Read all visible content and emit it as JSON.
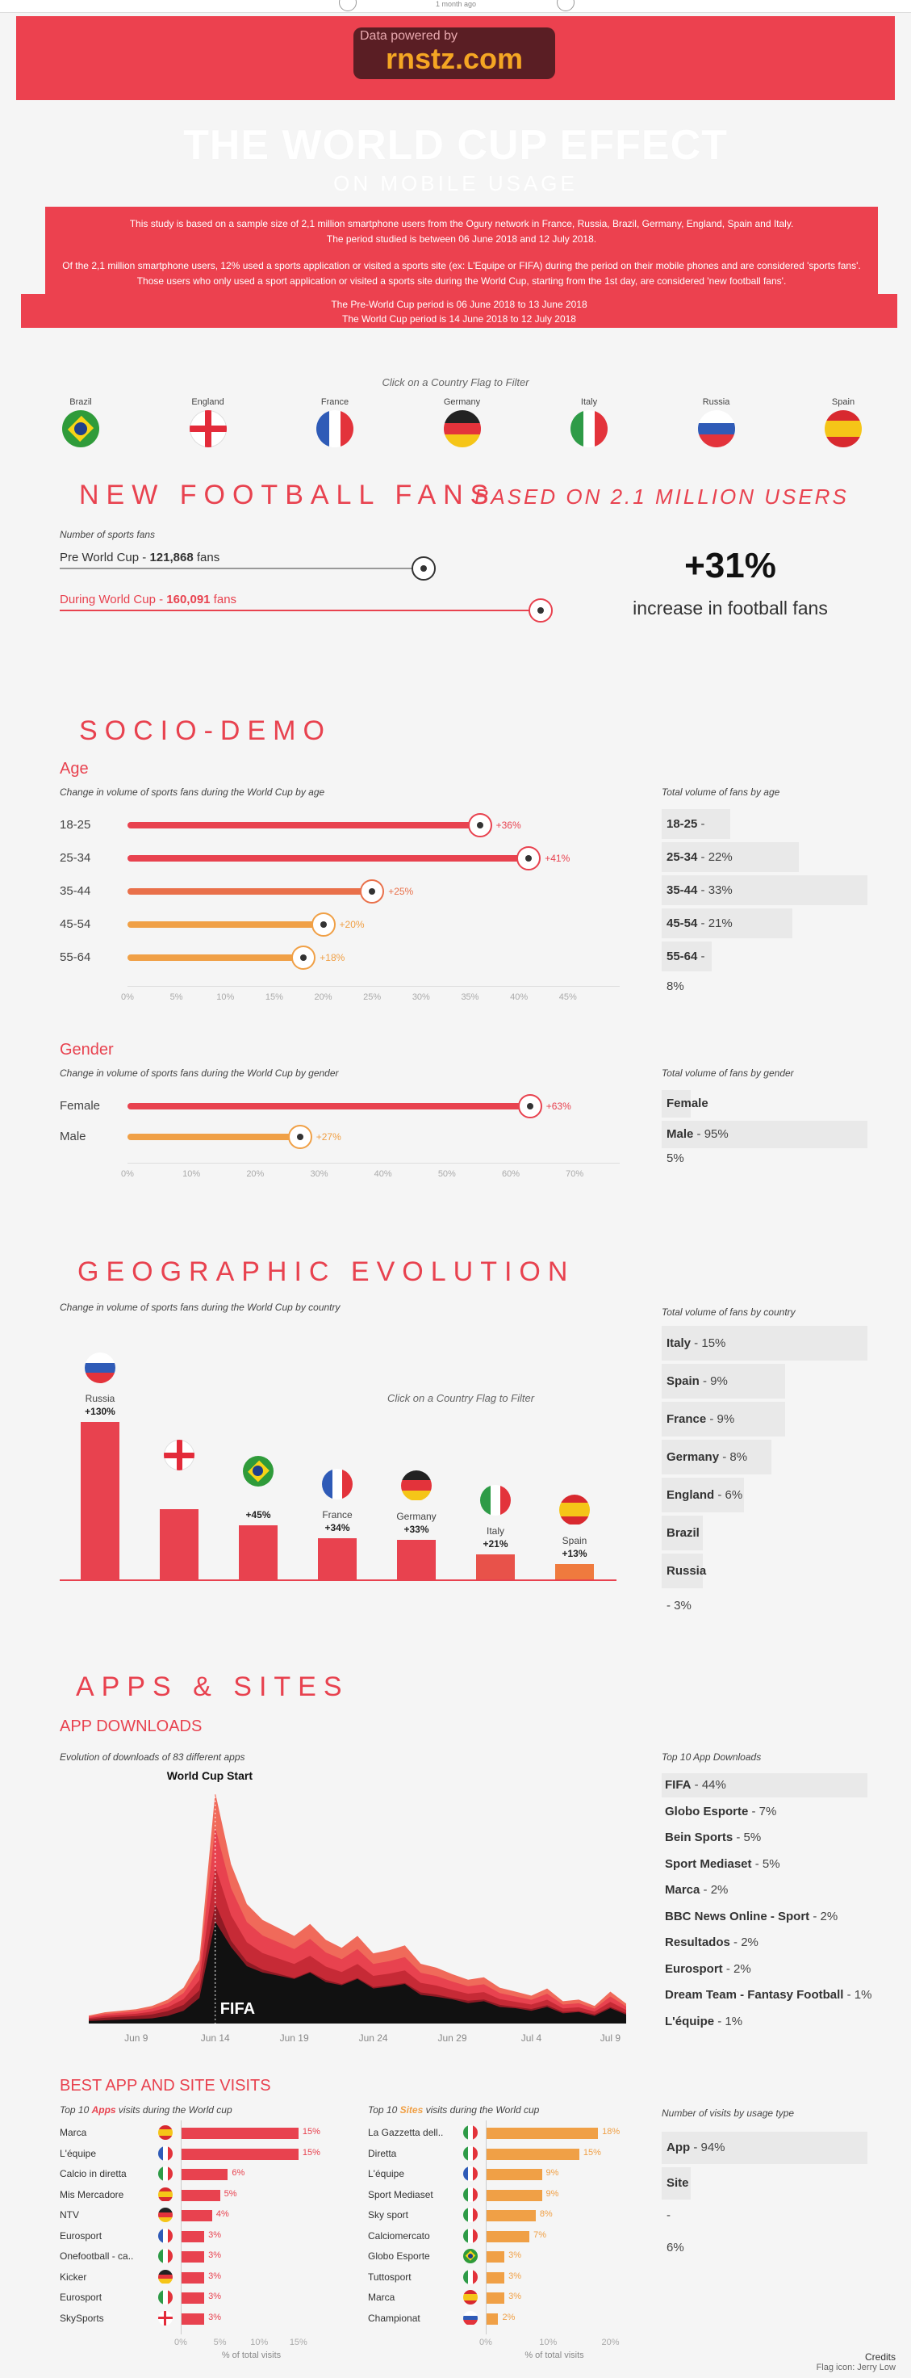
{
  "top": {
    "label": "1 month ago"
  },
  "banner": {
    "powered": "Data powered by",
    "brand": "rnstz.com"
  },
  "title": "THE WORLD CUP EFFECT",
  "subtitle": "ON MOBILE USAGE",
  "info": {
    "line1": "This study is based on a sample size of 2,1 million smartphone users from the Ogury network in France, Russia, Brazil, Germany, England, Spain and Italy.",
    "line2": "The period studied is between 06 June 2018 and 12 July 2018.",
    "line3": "Of the 2,1 million smartphone users, 12% used a sports application or visited a sports site (ex: L'Equipe or FIFA) during the period on their mobile phones and are considered 'sports fans'. Those users who only used a sport application or visited a sports site during the World Cup, starting from the 1st day, are considered 'new football fans'.",
    "line4": "The Pre-World Cup period is 06 June 2018 to 13 June 2018",
    "line5": "The World Cup period is 14 June 2018 to 12 July 2018"
  },
  "filter_hint": "Click on a Country Flag to Filter",
  "flags": [
    "Brazil",
    "England",
    "France",
    "Germany",
    "Italy",
    "Russia",
    "Spain"
  ],
  "new_fans": {
    "title": "NEW FOOTBALL FANS",
    "subtitle": "BASED ON 2.1 MILLION USERS",
    "caption": "Number of sports fans",
    "pre_label": "Pre World Cup - ",
    "pre_value": "121,868",
    "pre_unit": " fans",
    "during_label": "During World Cup - ",
    "during_value": "160,091",
    "during_unit": " fans",
    "pre_fraction": 0.76,
    "big_value": "+31%",
    "big_label": "increase in football fans"
  },
  "socio": {
    "title": "SOCIO-DEMO",
    "age_title": "Age",
    "age_caption": "Change in volume of sports fans during the World Cup by age",
    "age_total_caption": "Total volume of fans by age",
    "gender_title": "Gender",
    "gender_caption": "Change in volume of sports fans during the World Cup by gender",
    "gender_total_caption": "Total volume of fans by gender"
  },
  "geo": {
    "title": "GEOGRAPHIC EVOLUTION",
    "caption": "Change in volume of sports fans during the World Cup by country",
    "total_caption": "Total volume of fans by country"
  },
  "apps": {
    "title": "APPS & SITES",
    "downloads_title": "APP DOWNLOADS",
    "downloads_caption": "Evolution of downloads of 83 different apps",
    "wc_start": "World Cup Start",
    "fifa_label": "FIFA",
    "top10_caption": "Top 10 App Downloads",
    "visits_title": "BEST APP AND SITE VISITS",
    "apps_caption_pre": "Top 10 ",
    "apps_caption_em": "Apps",
    "apps_caption_post": " visits during the World cup",
    "sites_caption_em": "Sites",
    "usage_caption": "Number of visits by usage type",
    "pct_label": "% of total visits"
  },
  "credits": {
    "line1": "Credits",
    "line2": "Flag icon: Jerry Low"
  },
  "colors": {
    "red": "#e8424f",
    "orange": "#f0a046",
    "midorange": "#e9704a",
    "black": "#111111"
  },
  "chart_data": [
    {
      "type": "bar",
      "title": "Age",
      "categories": [
        "18-25",
        "25-34",
        "35-44",
        "45-54",
        "55-64"
      ],
      "values": [
        36,
        41,
        25,
        20,
        18
      ],
      "value_labels": [
        "+36%",
        "+41%",
        "+25%",
        "+20%",
        "+18%"
      ],
      "xticks": [
        "0%",
        "5%",
        "10%",
        "15%",
        "20%",
        "25%",
        "30%",
        "35%",
        "40%",
        "45%"
      ],
      "xlim": [
        0,
        45
      ]
    },
    {
      "type": "bar",
      "title": "Total volume of fans by age",
      "categories": [
        "18-25",
        "25-34",
        "35-44",
        "45-54",
        "55-64"
      ],
      "values": [
        11,
        22,
        33,
        21,
        8
      ],
      "value_labels": [
        "11%",
        "22%",
        "33%",
        "21%",
        "8%"
      ]
    },
    {
      "type": "bar",
      "title": "Gender",
      "categories": [
        "Female",
        "Male"
      ],
      "values": [
        63,
        27
      ],
      "value_labels": [
        "+63%",
        "+27%"
      ],
      "xticks": [
        "0%",
        "10%",
        "20%",
        "30%",
        "40%",
        "50%",
        "60%",
        "70%"
      ],
      "xlim": [
        0,
        70
      ]
    },
    {
      "type": "bar",
      "title": "Total volume of fans by gender",
      "categories": [
        "Female",
        "Male"
      ],
      "values": [
        5,
        95
      ],
      "value_labels": [
        "5%",
        "95%"
      ]
    },
    {
      "type": "bar",
      "title": "Geographic evolution",
      "categories": [
        "Russia",
        "England",
        "Brazil",
        "France",
        "Germany",
        "Italy",
        "Spain"
      ],
      "category_labels": [
        "Russia",
        "",
        "",
        "France",
        "Germany",
        "Italy",
        "Spain"
      ],
      "values": [
        130,
        58,
        45,
        34,
        33,
        21,
        13
      ],
      "value_labels": [
        "+130%",
        "",
        "+45%",
        "+34%",
        "+33%",
        "+21%",
        "+13%"
      ]
    },
    {
      "type": "bar",
      "title": "Total volume of fans by country",
      "categories": [
        "Italy",
        "Spain",
        "France",
        "Germany",
        "England",
        "Brazil",
        "Russia"
      ],
      "values": [
        15,
        9,
        9,
        8,
        6,
        3,
        3
      ],
      "value_labels": [
        "15%",
        "9%",
        "9%",
        "8%",
        "6%",
        "3%",
        "3%"
      ]
    },
    {
      "type": "area",
      "title": "Evolution of downloads of 83 different apps",
      "xticks": [
        "Jun 9",
        "Jun 14",
        "Jun 19",
        "Jun 24",
        "Jun 29",
        "Jul 4",
        "Jul 9"
      ],
      "x": [
        6,
        7,
        8,
        9,
        10,
        11,
        12,
        13,
        14,
        15,
        16,
        17,
        18,
        19,
        20,
        21,
        22,
        23,
        24,
        25,
        26,
        27,
        28,
        29,
        30,
        31,
        32,
        33,
        34,
        35,
        36,
        37,
        38,
        39,
        40
      ],
      "series": [
        {
          "values": [
            10,
            14,
            16,
            18,
            22,
            30,
            45,
            80,
            290,
            200,
            150,
            130,
            120,
            110,
            125,
            105,
            95,
            110,
            88,
            92,
            98,
            75,
            70,
            62,
            55,
            58,
            45,
            40,
            35,
            44,
            28,
            30,
            22,
            40,
            25
          ]
        },
        {
          "values": [
            4,
            5,
            6,
            7,
            8,
            12,
            20,
            40,
            160,
            120,
            90,
            80,
            75,
            70,
            80,
            65,
            60,
            70,
            55,
            58,
            62,
            45,
            42,
            38,
            32,
            35,
            26,
            24,
            20,
            26,
            16,
            18,
            12,
            24,
            14
          ]
        }
      ]
    },
    {
      "type": "bar",
      "title": "Top 10 App Downloads",
      "categories": [
        "FIFA",
        "Globo Esporte",
        "Bein Sports",
        "Sport Mediaset",
        "Marca",
        "BBC News Online - Sport",
        "Resultados",
        "Eurosport",
        "Dream Team - Fantasy Football",
        "L'équipe"
      ],
      "values": [
        44,
        7,
        5,
        5,
        2,
        2,
        2,
        2,
        1,
        1
      ],
      "value_labels": [
        "44%",
        "7%",
        "5%",
        "5%",
        "2%",
        "2%",
        "2%",
        "2%",
        "1%",
        "1%"
      ]
    },
    {
      "type": "bar",
      "title": "Top 10 Apps visits during the World cup",
      "categories": [
        "Marca",
        "L'équipe",
        "Calcio in diretta",
        "Mis Mercadore",
        "NTV",
        "Eurosport",
        "Onefootball - ca..",
        "Kicker",
        "Eurosport",
        "SkySports"
      ],
      "flags": [
        "es",
        "fr",
        "it",
        "es",
        "de",
        "fr",
        "it",
        "de",
        "it",
        "en"
      ],
      "values": [
        15,
        15,
        6,
        5,
        4,
        3,
        3,
        3,
        3,
        3
      ],
      "value_labels": [
        "15%",
        "15%",
        "6%",
        "5%",
        "4%",
        "3%",
        "3%",
        "3%",
        "3%",
        "3%"
      ],
      "xticks": [
        "0%",
        "5%",
        "10%",
        "15%"
      ],
      "xlim": [
        0,
        18
      ],
      "xlabel": "% of total visits"
    },
    {
      "type": "bar",
      "title": "Top 10 Sites visits during the World Cup",
      "categories": [
        "La Gazzetta dell..",
        "Diretta",
        "L'équipe",
        "Sport Mediaset",
        "Sky sport",
        "Calciomercato",
        "Globo Esporte",
        "Tuttosport",
        "Marca",
        "Championat"
      ],
      "flags": [
        "it",
        "it",
        "fr",
        "it",
        "it",
        "it",
        "br",
        "it",
        "es",
        "ru"
      ],
      "values": [
        18,
        15,
        9,
        9,
        8,
        7,
        3,
        3,
        3,
        2
      ],
      "value_labels": [
        "18%",
        "15%",
        "9%",
        "9%",
        "8%",
        "7%",
        "3%",
        "3%",
        "3%",
        "2%"
      ],
      "xticks": [
        "0%",
        "10%",
        "20%"
      ],
      "xlim": [
        0,
        22
      ],
      "xlabel": "% of total visits"
    },
    {
      "type": "bar",
      "title": "Number of visits by usage type",
      "categories": [
        "App",
        "Site"
      ],
      "values": [
        94,
        6
      ],
      "value_labels": [
        "94%",
        "6%"
      ]
    }
  ]
}
